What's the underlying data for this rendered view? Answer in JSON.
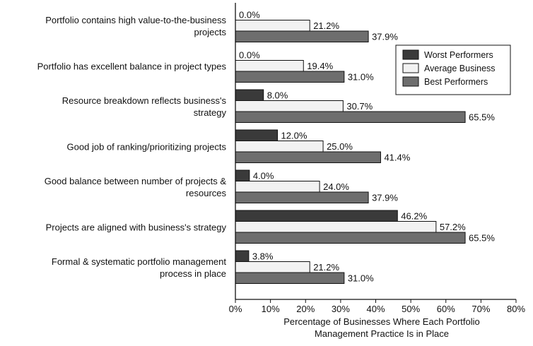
{
  "chart_data": {
    "type": "bar",
    "orientation": "horizontal",
    "categories": [
      [
        "Portfolio contains high value-to-the-business",
        "projects"
      ],
      [
        "Portfolio has excellent balance in project types"
      ],
      [
        "Resource breakdown reflects business's",
        "strategy"
      ],
      [
        "Good job of ranking/prioritizing projects"
      ],
      [
        "Good balance between number of projects &",
        "resources"
      ],
      [
        "Projects are aligned with business's strategy"
      ],
      [
        "Formal & systematic portfolio management",
        "process in place"
      ]
    ],
    "series": [
      {
        "name": "Worst Performers",
        "color": "#3a3a3a",
        "values": [
          0.0,
          0.0,
          8.0,
          12.0,
          4.0,
          46.2,
          3.8
        ]
      },
      {
        "name": "Average Business",
        "color": "#f2f2f2",
        "values": [
          21.2,
          19.4,
          30.7,
          25.0,
          24.0,
          57.2,
          21.2
        ]
      },
      {
        "name": "Best Performers",
        "color": "#6e6e6e",
        "values": [
          37.9,
          31.0,
          65.5,
          41.4,
          37.9,
          65.5,
          31.0
        ]
      }
    ],
    "value_suffix": "%",
    "xlim": [
      0,
      80
    ],
    "xticks": [
      "0%",
      "10%",
      "20%",
      "30%",
      "40%",
      "50%",
      "60%",
      "70%",
      "80%"
    ],
    "xlabel": [
      "Percentage of Businesses Where Each Portfolio",
      "Management Practice Is in Place"
    ],
    "legend_position": "top-right",
    "grid": false
  }
}
